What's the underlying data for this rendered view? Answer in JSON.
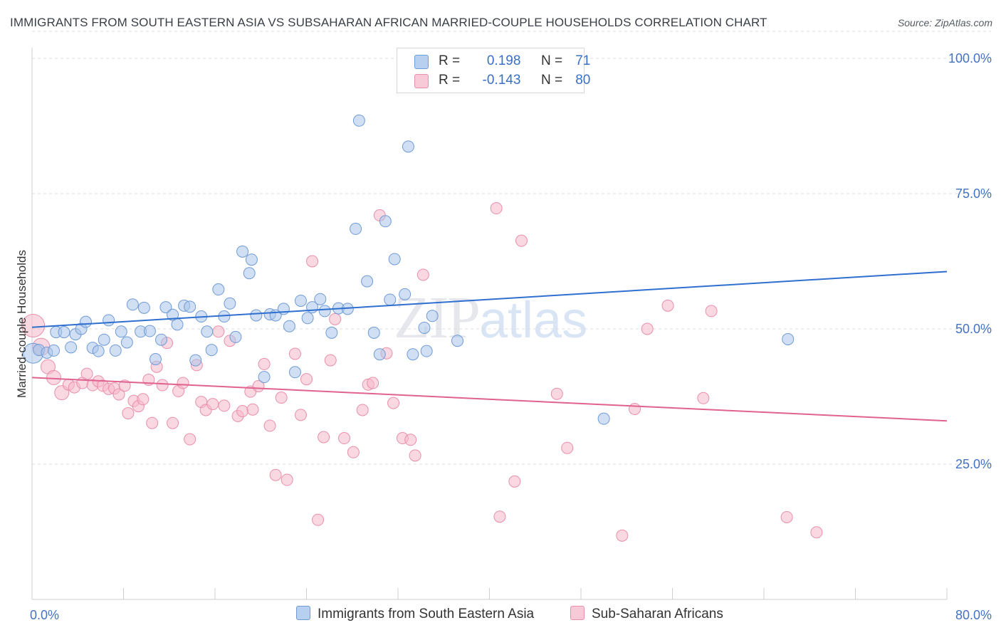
{
  "header": {
    "title": "IMMIGRANTS FROM SOUTH EASTERN ASIA VS SUBSAHARAN AFRICAN MARRIED-COUPLE HOUSEHOLDS CORRELATION CHART",
    "source": "Source: ZipAtlas.com"
  },
  "watermark": {
    "zip": "ZIP",
    "atlas": "atlas"
  },
  "legend": {
    "blue": {
      "r_label": "R =",
      "r_value": "0.198",
      "n_label": "N =",
      "n_value": "71"
    },
    "pink": {
      "r_label": "R =",
      "r_value": "-0.143",
      "n_label": "N =",
      "n_value": "80"
    }
  },
  "colors": {
    "blue_fill": "#a9c4ea",
    "blue_stroke": "#6f9bd6",
    "blue_line": "#2f6fcf",
    "pink_fill": "#f5b8cb",
    "pink_stroke": "#e98fab",
    "pink_line": "#e0628f",
    "tick_text": "#4472c4",
    "grid": "#dcdcdc"
  },
  "chart_data": {
    "type": "scatter",
    "title": "IMMIGRANTS FROM SOUTH EASTERN ASIA VS SUBSAHARAN AFRICAN MARRIED-COUPLE HOUSEHOLDS CORRELATION CHART",
    "xlabel": "",
    "ylabel": "Married-couple Households",
    "xlim": [
      0,
      80
    ],
    "ylim": [
      0,
      105
    ],
    "x_tick_labels": {
      "min": "0.0%",
      "max": "80.0%"
    },
    "y_ticks": [
      {
        "value": 25,
        "label": "25.0%"
      },
      {
        "value": 50,
        "label": "50.0%"
      },
      {
        "value": 75,
        "label": "75.0%"
      },
      {
        "value": 100,
        "label": "100.0%"
      }
    ],
    "series": [
      {
        "name": "Immigrants from South Eastern Asia",
        "color": "blue",
        "trend": {
          "x": [
            0,
            80
          ],
          "y": [
            50.3,
            60.6
          ]
        },
        "points": [
          [
            0.1,
            45.5,
            14
          ],
          [
            0.6,
            46.1,
            8
          ],
          [
            1.3,
            45.6,
            8
          ],
          [
            1.9,
            46.0,
            8
          ],
          [
            2.1,
            49.4,
            8
          ],
          [
            2.8,
            49.4,
            8
          ],
          [
            3.4,
            46.6,
            8
          ],
          [
            3.8,
            49.0,
            8
          ],
          [
            4.3,
            50.0,
            8
          ],
          [
            4.7,
            51.3,
            8
          ],
          [
            5.3,
            46.5,
            8
          ],
          [
            5.8,
            45.9,
            8
          ],
          [
            6.3,
            48.0,
            8
          ],
          [
            6.7,
            51.6,
            8
          ],
          [
            7.3,
            46.0,
            8
          ],
          [
            7.8,
            49.5,
            8
          ],
          [
            8.3,
            47.5,
            8
          ],
          [
            8.8,
            54.5,
            8
          ],
          [
            9.5,
            49.5,
            8
          ],
          [
            9.8,
            53.9,
            8
          ],
          [
            10.3,
            49.6,
            8
          ],
          [
            10.8,
            44.4,
            8
          ],
          [
            11.3,
            48.0,
            8
          ],
          [
            11.7,
            54.0,
            8
          ],
          [
            12.3,
            52.6,
            8
          ],
          [
            12.7,
            50.8,
            8
          ],
          [
            13.3,
            54.3,
            8
          ],
          [
            13.8,
            54.1,
            8
          ],
          [
            14.3,
            44.2,
            8
          ],
          [
            14.8,
            52.3,
            8
          ],
          [
            15.3,
            49.5,
            8
          ],
          [
            15.7,
            46.1,
            8
          ],
          [
            16.3,
            57.3,
            8
          ],
          [
            16.8,
            52.3,
            8
          ],
          [
            17.3,
            54.7,
            8
          ],
          [
            17.8,
            48.5,
            8
          ],
          [
            18.4,
            64.3,
            8
          ],
          [
            19.0,
            60.3,
            8
          ],
          [
            19.2,
            62.8,
            8
          ],
          [
            19.6,
            52.5,
            8
          ],
          [
            20.3,
            41.1,
            8
          ],
          [
            20.8,
            52.7,
            8
          ],
          [
            21.3,
            52.5,
            8
          ],
          [
            22.0,
            53.7,
            8
          ],
          [
            22.5,
            50.5,
            8
          ],
          [
            23.0,
            42.0,
            8
          ],
          [
            23.5,
            55.2,
            8
          ],
          [
            24.1,
            52.0,
            8
          ],
          [
            24.5,
            54.0,
            8
          ],
          [
            25.2,
            55.5,
            8
          ],
          [
            25.6,
            53.3,
            8
          ],
          [
            26.2,
            49.3,
            8
          ],
          [
            26.8,
            53.8,
            8
          ],
          [
            27.6,
            53.7,
            8
          ],
          [
            28.3,
            68.5,
            8
          ],
          [
            28.6,
            88.5,
            8
          ],
          [
            29.3,
            58.8,
            8
          ],
          [
            29.9,
            49.3,
            8
          ],
          [
            30.4,
            45.3,
            8
          ],
          [
            30.9,
            69.9,
            8
          ],
          [
            31.3,
            55.4,
            8
          ],
          [
            31.7,
            62.9,
            8
          ],
          [
            32.6,
            56.4,
            8
          ],
          [
            32.9,
            83.7,
            8
          ],
          [
            33.3,
            45.3,
            8
          ],
          [
            34.3,
            50.2,
            8
          ],
          [
            34.5,
            45.9,
            8
          ],
          [
            35.0,
            52.4,
            8
          ],
          [
            37.2,
            47.8,
            8
          ],
          [
            50.0,
            33.4,
            8
          ],
          [
            66.1,
            48.1,
            8
          ]
        ]
      },
      {
        "name": "Sub-Saharan Africans",
        "color": "pink",
        "trend": {
          "x": [
            0,
            80
          ],
          "y": [
            41.0,
            33.0
          ]
        },
        "points": [
          [
            0.1,
            50.6,
            16
          ],
          [
            0.8,
            46.7,
            12
          ],
          [
            1.4,
            43.0,
            10
          ],
          [
            1.9,
            41.0,
            10
          ],
          [
            2.6,
            38.2,
            10
          ],
          [
            3.2,
            39.7,
            8
          ],
          [
            3.7,
            39.2,
            8
          ],
          [
            4.4,
            40.0,
            8
          ],
          [
            4.8,
            41.7,
            8
          ],
          [
            5.3,
            39.6,
            8
          ],
          [
            5.8,
            40.3,
            8
          ],
          [
            6.2,
            39.5,
            8
          ],
          [
            6.7,
            38.9,
            8
          ],
          [
            7.2,
            39.0,
            8
          ],
          [
            7.6,
            37.9,
            8
          ],
          [
            8.1,
            39.5,
            8
          ],
          [
            8.4,
            34.4,
            8
          ],
          [
            8.9,
            36.7,
            8
          ],
          [
            9.3,
            35.7,
            8
          ],
          [
            9.7,
            37.0,
            8
          ],
          [
            10.2,
            40.6,
            8
          ],
          [
            10.5,
            32.6,
            8
          ],
          [
            10.9,
            43.0,
            8
          ],
          [
            11.4,
            39.6,
            8
          ],
          [
            11.8,
            47.4,
            8
          ],
          [
            12.3,
            32.6,
            8
          ],
          [
            12.8,
            38.5,
            8
          ],
          [
            13.2,
            40.0,
            8
          ],
          [
            13.8,
            29.6,
            8
          ],
          [
            14.4,
            43.3,
            8
          ],
          [
            14.8,
            36.5,
            8
          ],
          [
            15.2,
            35.0,
            8
          ],
          [
            15.8,
            36.1,
            8
          ],
          [
            16.3,
            49.5,
            8
          ],
          [
            16.8,
            35.8,
            8
          ],
          [
            17.3,
            47.8,
            8
          ],
          [
            18.0,
            33.9,
            8
          ],
          [
            18.4,
            34.8,
            8
          ],
          [
            19.1,
            38.4,
            8
          ],
          [
            19.3,
            35.1,
            8
          ],
          [
            19.8,
            39.4,
            8
          ],
          [
            20.3,
            43.5,
            8
          ],
          [
            20.8,
            32.1,
            8
          ],
          [
            21.3,
            23.0,
            8
          ],
          [
            21.8,
            37.3,
            8
          ],
          [
            22.3,
            22.1,
            8
          ],
          [
            23.0,
            45.4,
            8
          ],
          [
            23.5,
            34.1,
            8
          ],
          [
            24.0,
            40.7,
            8
          ],
          [
            24.5,
            62.5,
            8
          ],
          [
            25.0,
            14.7,
            8
          ],
          [
            25.5,
            30.0,
            8
          ],
          [
            26.1,
            44.2,
            8
          ],
          [
            26.5,
            51.8,
            8
          ],
          [
            27.3,
            29.8,
            8
          ],
          [
            28.1,
            27.2,
            8
          ],
          [
            28.9,
            35.0,
            8
          ],
          [
            29.4,
            39.7,
            8
          ],
          [
            29.8,
            40.0,
            8
          ],
          [
            30.4,
            71.0,
            8
          ],
          [
            31.0,
            45.5,
            8
          ],
          [
            31.6,
            36.3,
            8
          ],
          [
            32.4,
            29.8,
            8
          ],
          [
            33.1,
            29.5,
            8
          ],
          [
            33.5,
            26.6,
            8
          ],
          [
            34.2,
            60.0,
            8
          ],
          [
            40.6,
            72.3,
            8
          ],
          [
            40.9,
            15.3,
            8
          ],
          [
            42.2,
            21.8,
            8
          ],
          [
            42.8,
            66.3,
            8
          ],
          [
            45.9,
            38.0,
            8
          ],
          [
            46.8,
            28.0,
            8
          ],
          [
            51.6,
            11.8,
            8
          ],
          [
            52.7,
            35.2,
            8
          ],
          [
            53.8,
            50.0,
            8
          ],
          [
            55.6,
            54.3,
            8
          ],
          [
            58.7,
            37.2,
            8
          ],
          [
            59.4,
            53.3,
            8
          ],
          [
            66.0,
            15.2,
            8
          ],
          [
            68.6,
            12.4,
            8
          ]
        ]
      }
    ]
  }
}
